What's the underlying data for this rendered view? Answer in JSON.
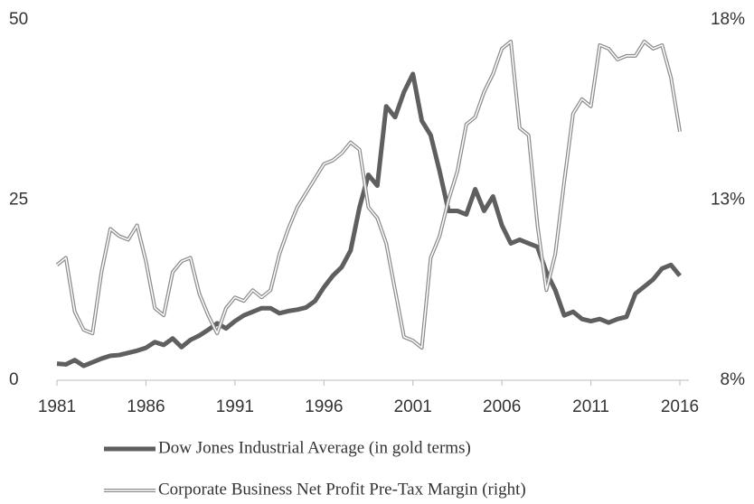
{
  "chart_data": {
    "type": "line",
    "x": [
      1981,
      1981.5,
      1982,
      1982.5,
      1983,
      1983.5,
      1984,
      1984.5,
      1985,
      1985.5,
      1986,
      1986.5,
      1987,
      1987.5,
      1988,
      1988.5,
      1989,
      1989.5,
      1990,
      1990.5,
      1991,
      1991.5,
      1992,
      1992.5,
      1993,
      1993.5,
      1994,
      1994.5,
      1995,
      1995.5,
      1996,
      1996.5,
      1997,
      1997.5,
      1998,
      1998.5,
      1999,
      1999.5,
      2000,
      2000.5,
      2001,
      2001.5,
      2002,
      2002.5,
      2003,
      2003.5,
      2004,
      2004.5,
      2005,
      2005.5,
      2006,
      2006.5,
      2007,
      2007.5,
      2008,
      2008.5,
      2009,
      2009.5,
      2010,
      2010.5,
      2011,
      2011.5,
      2012,
      2012.5,
      2013,
      2013.5,
      2014,
      2014.5,
      2015,
      2015.5,
      2016
    ],
    "series": [
      {
        "name": "Dow Jones Industrial Average (in gold terms)",
        "color": "#5f5f5f",
        "style": "thick",
        "values": [
          2.3,
          2.2,
          2.8,
          2.0,
          2.5,
          3.0,
          3.4,
          3.5,
          3.8,
          4.1,
          4.5,
          5.3,
          4.9,
          5.8,
          4.6,
          5.6,
          6.2,
          7.0,
          7.9,
          7.2,
          8.2,
          9.0,
          9.5,
          10.0,
          10.0,
          9.3,
          9.6,
          9.8,
          10.1,
          11.0,
          12.9,
          14.5,
          15.7,
          18.0,
          24.0,
          28.5,
          27.0,
          38.0,
          36.5,
          40.0,
          42.5,
          36.0,
          34.0,
          29.0,
          23.5,
          23.5,
          23.0,
          26.5,
          23.5,
          25.5,
          21.5,
          19.0,
          19.5,
          19.0,
          18.5,
          15.0,
          12.5,
          9.0,
          9.5,
          8.5,
          8.2,
          8.5,
          8.0,
          8.5,
          8.8,
          12.0,
          13.0,
          14.0,
          15.5,
          16.0,
          14.5
        ]
      },
      {
        "name": "Corporate Business Net Profit Pre-Tax Margin (right)",
        "color": "#8c8c8c",
        "style": "double",
        "axis": "y2",
        "values": [
          11.2,
          11.4,
          9.9,
          9.4,
          9.3,
          11.0,
          12.2,
          12.0,
          11.9,
          12.3,
          11.3,
          10.0,
          9.8,
          11.0,
          11.3,
          11.4,
          10.4,
          9.8,
          9.3,
          10.0,
          10.3,
          10.2,
          10.5,
          10.3,
          10.5,
          11.5,
          12.2,
          12.8,
          13.2,
          13.6,
          14.0,
          14.1,
          14.3,
          14.6,
          14.4,
          12.8,
          12.5,
          11.8,
          10.5,
          9.2,
          9.1,
          8.9,
          11.4,
          12.0,
          13.0,
          13.8,
          15.1,
          15.3,
          16.0,
          16.5,
          17.2,
          17.4,
          15.0,
          14.8,
          12.3,
          10.5,
          11.5,
          13.5,
          15.4,
          15.8,
          15.6,
          17.3,
          17.2,
          16.9,
          17.0,
          17.0,
          17.4,
          17.2,
          17.3,
          16.4,
          14.9
        ]
      }
    ],
    "xlim": [
      1981,
      2016
    ],
    "xticks": [
      1981,
      1986,
      1991,
      1996,
      2001,
      2006,
      2011,
      2016
    ],
    "ylim": [
      0,
      50
    ],
    "yticks": [
      0,
      25,
      50
    ],
    "y2lim": [
      8,
      18
    ],
    "y2ticks": [
      {
        "value": 8,
        "label": "8%"
      },
      {
        "value": 13,
        "label": "13%"
      },
      {
        "value": 18,
        "label": "18%"
      }
    ],
    "legend": "bottom"
  }
}
